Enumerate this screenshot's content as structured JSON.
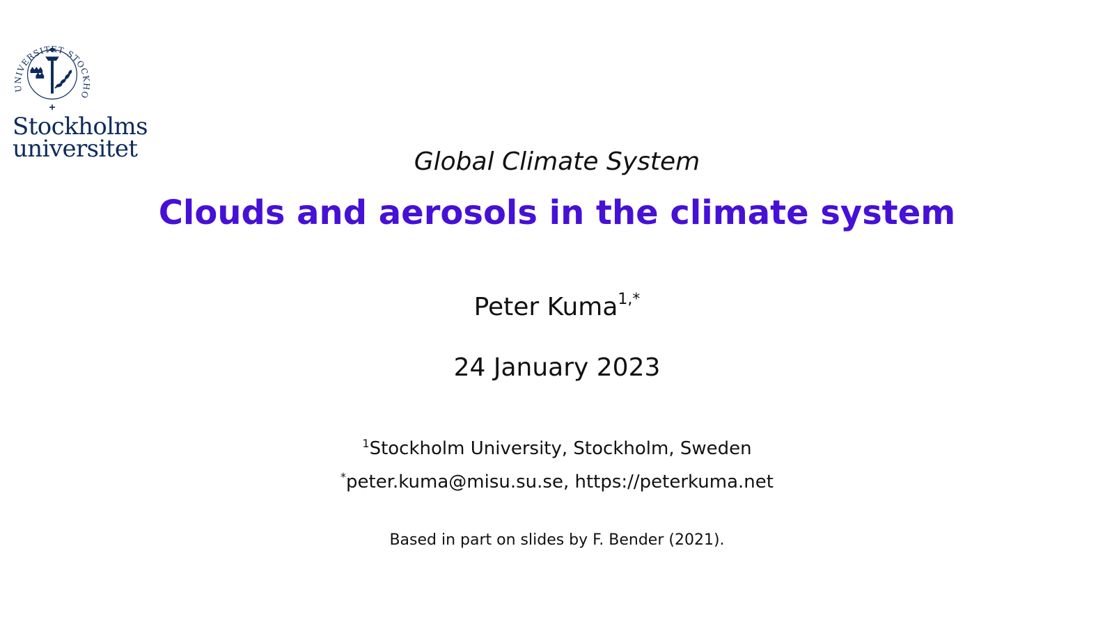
{
  "logo": {
    "seal_text": "UNIVERSITET STOCKHOLMS",
    "name_line1": "Stockholms",
    "name_line2": "universitet",
    "color": "#0d2a5c"
  },
  "slide": {
    "course": "Global Climate System",
    "title": "Clouds and aerosols in the climate system",
    "title_color": "#4610d6",
    "author_name": "Peter Kuma",
    "author_marks": "1,*",
    "date": "24 January 2023",
    "affiliation_mark": "1",
    "affiliation": "Stockholm University, Stockholm, Sweden",
    "contact_mark": "*",
    "contact": "peter.kuma@misu.su.se, https://peterkuma.net",
    "note": "Based in part on slides by F. Bender (2021)."
  }
}
